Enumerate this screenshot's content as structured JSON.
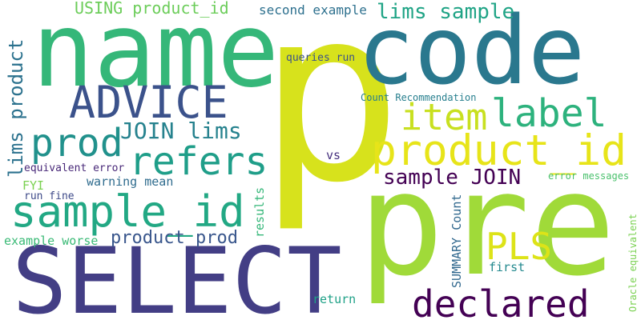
{
  "words": [
    {
      "text": "p",
      "color": "#d7e21c",
      "rot": 0
    },
    {
      "text": "name",
      "color": "#35b779",
      "rot": 0
    },
    {
      "text": "code",
      "color": "#2a788e",
      "rot": 0
    },
    {
      "text": "pre",
      "color": "#a0da39",
      "rot": 0
    },
    {
      "text": "SELECT",
      "color": "#433e85",
      "rot": 0
    },
    {
      "text": "product_id",
      "color": "#e7e419",
      "rot": 0
    },
    {
      "text": "sample_id",
      "color": "#22a884",
      "rot": 0
    },
    {
      "text": "ADVICE",
      "color": "#3b528b",
      "rot": 0
    },
    {
      "text": "refers",
      "color": "#1f9e89",
      "rot": 0
    },
    {
      "text": "label",
      "color": "#2db27d",
      "rot": 0
    },
    {
      "text": "item",
      "color": "#c8e020",
      "rot": 0
    },
    {
      "text": "prod",
      "color": "#21918c",
      "rot": 0
    },
    {
      "text": "declared",
      "color": "#440154",
      "rot": 0
    },
    {
      "text": "PLS",
      "color": "#dde318",
      "rot": 0
    },
    {
      "text": "JOIN lims",
      "color": "#26828e",
      "rot": 0
    },
    {
      "text": "lims sample",
      "color": "#20a486",
      "rot": 0
    },
    {
      "text": "sample JOIN",
      "color": "#440154",
      "rot": 0
    },
    {
      "text": "product prod",
      "color": "#39568c",
      "rot": 0
    },
    {
      "text": "USING product_id",
      "color": "#6ccd5a",
      "rot": 0
    },
    {
      "text": "lims product",
      "color": "#2c728e",
      "rot": -90
    },
    {
      "text": "second example",
      "color": "#2d708e",
      "rot": 0
    },
    {
      "text": "queries run",
      "color": "#3b528b",
      "rot": 0
    },
    {
      "text": "Count Recommendation",
      "color": "#277f8e",
      "rot": 0
    },
    {
      "text": "vs",
      "color": "#46307e",
      "rot": 0
    },
    {
      "text": "equivalent error",
      "color": "#482878",
      "rot": 0
    },
    {
      "text": "FYI",
      "color": "#7ad151",
      "rot": 0
    },
    {
      "text": "run fine",
      "color": "#3e4a89",
      "rot": 0
    },
    {
      "text": "warning mean",
      "color": "#2f6c8e",
      "rot": 0
    },
    {
      "text": "example worse",
      "color": "#3aba76",
      "rot": 0
    },
    {
      "text": "results",
      "color": "#35b779",
      "rot": -90
    },
    {
      "text": "SUMMARY Count",
      "color": "#31688e",
      "rot": -90
    },
    {
      "text": "error messages",
      "color": "#4ac16d",
      "rot": 0
    },
    {
      "text": "Oracle equivalent",
      "color": "#7ad151",
      "rot": -90
    },
    {
      "text": "first",
      "color": "#23898e",
      "rot": 0
    },
    {
      "text": "return",
      "color": "#1fa187",
      "rot": 0
    }
  ]
}
